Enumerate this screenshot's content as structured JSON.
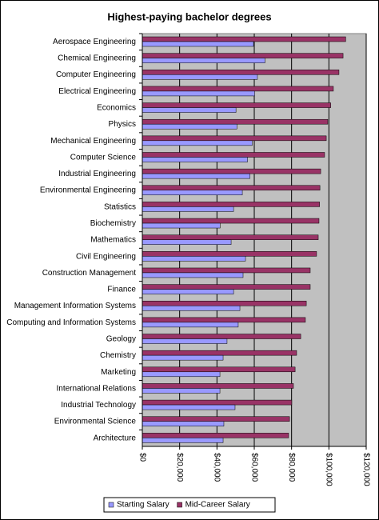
{
  "chart_data": {
    "type": "hbar",
    "title": "Highest-paying bachelor degrees",
    "categories": [
      "Aerospace Engineering",
      "Chemical Engineering",
      "Computer Engineering",
      "Electrical Engineering",
      "Economics",
      "Physics",
      "Mechanical Engineering",
      "Computer Science",
      "Industrial Engineering",
      "Environmental Engineering",
      "Statistics",
      "Biochemistry",
      "Mathematics",
      "Civil Engineering",
      "Construction Management",
      "Finance",
      "Management Information Systems",
      "Computing and Information Systems",
      "Geology",
      "Chemistry",
      "Marketing",
      "International Relations",
      "Industrial Technology",
      "Environmental Science",
      "Architecture"
    ],
    "series": [
      {
        "name": "Starting Salary",
        "color": "#9999ff",
        "values": [
          59600,
          65700,
          61700,
          60200,
          50200,
          50700,
          58900,
          56400,
          57700,
          53600,
          48900,
          41700,
          47600,
          55300,
          54000,
          48900,
          52300,
          51400,
          45400,
          43300,
          41600,
          41600,
          49700,
          43700,
          43300
        ]
      },
      {
        "name": "Mid-Career Salary",
        "color": "#993366",
        "values": [
          109000,
          107600,
          105400,
          102400,
          101000,
          99400,
          98600,
          97700,
          95600,
          95200,
          95000,
          94700,
          94300,
          93400,
          90000,
          90000,
          87900,
          87400,
          84900,
          82700,
          81900,
          81000,
          80100,
          78900,
          78400
        ]
      }
    ],
    "xlim": [
      0,
      120000
    ],
    "xticks": [
      {
        "value": 0,
        "label": "$0"
      },
      {
        "value": 20000,
        "label": "$20,000"
      },
      {
        "value": 40000,
        "label": "$40,000"
      },
      {
        "value": 60000,
        "label": "$60,000"
      },
      {
        "value": 80000,
        "label": "$80,000"
      },
      {
        "value": 100000,
        "label": "$100,000"
      },
      {
        "value": 120000,
        "label": "$120,000"
      }
    ],
    "grid": true,
    "plot_background": "#c0c0c0",
    "legend_position": "bottom"
  }
}
